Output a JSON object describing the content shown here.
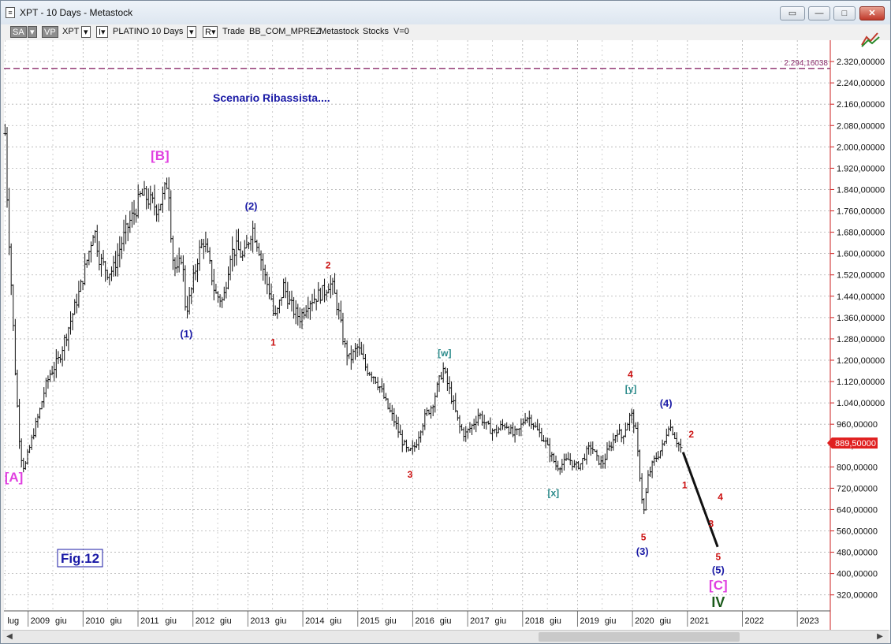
{
  "window": {
    "title": "XPT - 10 Days - Metastock",
    "icon_glyph": "≡",
    "controls": [
      {
        "name": "restore-icon",
        "glyph": "▭"
      },
      {
        "name": "minimize-icon",
        "glyph": "—"
      },
      {
        "name": "maximize-icon",
        "glyph": "□"
      },
      {
        "name": "close-icon",
        "glyph": "✕"
      }
    ]
  },
  "toolbar": {
    "items": [
      {
        "name": "sa-dropdown",
        "label": "SA",
        "style": "dark"
      },
      {
        "name": "sa-arrow",
        "label": "▾",
        "style": "dark"
      },
      {
        "name": "vp-button",
        "label": "VP",
        "style": "dark"
      },
      {
        "name": "symbol-label",
        "label": "XPT",
        "style": "text"
      },
      {
        "name": "symbol-dropdown",
        "label": "▾",
        "style": "box"
      },
      {
        "name": "symbol-menu",
        "label": "I▾",
        "style": "box"
      },
      {
        "name": "security-name",
        "label": "PLATINO",
        "style": "text"
      },
      {
        "name": "period-label",
        "label": "10 Days",
        "style": "text"
      },
      {
        "name": "period-dropdown",
        "label": "▾",
        "style": "box"
      },
      {
        "name": "r-menu",
        "label": "R▾",
        "style": "box"
      },
      {
        "name": "trade-label",
        "label": "Trade",
        "style": "text"
      },
      {
        "name": "broker-label",
        "label": "BB_COM_MPREZ",
        "style": "text"
      },
      {
        "name": "source-label",
        "label": "Metastock",
        "style": "text"
      },
      {
        "name": "type-label",
        "label": "Stocks",
        "style": "text"
      },
      {
        "name": "volume-label",
        "label": "V=0",
        "style": "text"
      }
    ]
  },
  "chart_data": {
    "type": "ohlc",
    "title": "Scenario Ribassista....",
    "figure_label": "Fig.12",
    "ylim": [
      260,
      2400
    ],
    "y_ticks": [
      2320,
      2240,
      2160,
      2080,
      2000,
      1920,
      1840,
      1760,
      1680,
      1600,
      1520,
      1440,
      1360,
      1280,
      1200,
      1120,
      1040,
      960,
      880,
      800,
      720,
      640,
      560,
      480,
      400,
      320
    ],
    "y_tick_labels": [
      "2.320,00000",
      "2.240,00000",
      "2.160,00000",
      "2.080,00000",
      "2.000,00000",
      "1.920,00000",
      "1.840,00000",
      "1.760,00000",
      "1.680,00000",
      "1.600,00000",
      "1.520,00000",
      "1.440,00000",
      "1.360,00000",
      "1.280,00000",
      "1.200,00000",
      "1.120,00000",
      "1.040,00000",
      "960,00000",
      "880,00000",
      "800,00000",
      "720,00000",
      "640,00000",
      "560,00000",
      "480,00000",
      "400,00000",
      "320,00000"
    ],
    "xlim": [
      2008.56,
      2023.6
    ],
    "x_labels": [
      {
        "t": 2008.58,
        "text": "lug"
      },
      {
        "t": 2009.0,
        "text": "2009"
      },
      {
        "t": 2009.45,
        "text": "giu"
      },
      {
        "t": 2010.0,
        "text": "2010"
      },
      {
        "t": 2010.45,
        "text": "giu"
      },
      {
        "t": 2011.0,
        "text": "2011"
      },
      {
        "t": 2011.45,
        "text": "giu"
      },
      {
        "t": 2012.0,
        "text": "2012"
      },
      {
        "t": 2012.45,
        "text": "giu"
      },
      {
        "t": 2013.0,
        "text": "2013"
      },
      {
        "t": 2013.45,
        "text": "giu"
      },
      {
        "t": 2014.0,
        "text": "2014"
      },
      {
        "t": 2014.45,
        "text": "giu"
      },
      {
        "t": 2015.0,
        "text": "2015"
      },
      {
        "t": 2015.45,
        "text": "giu"
      },
      {
        "t": 2016.0,
        "text": "2016"
      },
      {
        "t": 2016.45,
        "text": "giu"
      },
      {
        "t": 2017.0,
        "text": "2017"
      },
      {
        "t": 2017.45,
        "text": "giu"
      },
      {
        "t": 2018.0,
        "text": "2018"
      },
      {
        "t": 2018.45,
        "text": "giu"
      },
      {
        "t": 2019.0,
        "text": "2019"
      },
      {
        "t": 2019.45,
        "text": "giu"
      },
      {
        "t": 2020.0,
        "text": "2020"
      },
      {
        "t": 2020.45,
        "text": "giu"
      },
      {
        "t": 2021.0,
        "text": "2021"
      },
      {
        "t": 2022.0,
        "text": "2022"
      },
      {
        "t": 2023.0,
        "text": "2023"
      }
    ],
    "price_path": [
      [
        2008.58,
        2050
      ],
      [
        2008.62,
        1800
      ],
      [
        2008.7,
        1450
      ],
      [
        2008.78,
        1100
      ],
      [
        2008.86,
        850
      ],
      [
        2008.93,
        790
      ],
      [
        2009.0,
        850
      ],
      [
        2009.1,
        930
      ],
      [
        2009.2,
        1000
      ],
      [
        2009.3,
        1090
      ],
      [
        2009.4,
        1150
      ],
      [
        2009.55,
        1200
      ],
      [
        2009.7,
        1300
      ],
      [
        2009.85,
        1400
      ],
      [
        2009.95,
        1470
      ],
      [
        2010.1,
        1600
      ],
      [
        2010.2,
        1700
      ],
      [
        2010.3,
        1580
      ],
      [
        2010.45,
        1530
      ],
      [
        2010.55,
        1540
      ],
      [
        2010.7,
        1640
      ],
      [
        2010.85,
        1720
      ],
      [
        2010.95,
        1760
      ],
      [
        2011.05,
        1820
      ],
      [
        2011.15,
        1810
      ],
      [
        2011.25,
        1790
      ],
      [
        2011.35,
        1770
      ],
      [
        2011.45,
        1810
      ],
      [
        2011.55,
        1880
      ],
      [
        2011.62,
        1600
      ],
      [
        2011.7,
        1520
      ],
      [
        2011.8,
        1600
      ],
      [
        2011.87,
        1380
      ],
      [
        2011.95,
        1440
      ],
      [
        2012.1,
        1600
      ],
      [
        2012.2,
        1650
      ],
      [
        2012.3,
        1560
      ],
      [
        2012.4,
        1450
      ],
      [
        2012.55,
        1420
      ],
      [
        2012.68,
        1600
      ],
      [
        2012.8,
        1620
      ],
      [
        2012.92,
        1580
      ],
      [
        2013.08,
        1700
      ],
      [
        2013.2,
        1620
      ],
      [
        2013.3,
        1520
      ],
      [
        2013.42,
        1440
      ],
      [
        2013.48,
        1350
      ],
      [
        2013.55,
        1390
      ],
      [
        2013.65,
        1480
      ],
      [
        2013.75,
        1420
      ],
      [
        2013.85,
        1380
      ],
      [
        2013.95,
        1360
      ],
      [
        2014.1,
        1420
      ],
      [
        2014.25,
        1440
      ],
      [
        2014.4,
        1460
      ],
      [
        2014.48,
        1490
      ],
      [
        2014.55,
        1470
      ],
      [
        2014.65,
        1380
      ],
      [
        2014.75,
        1260
      ],
      [
        2014.85,
        1200
      ],
      [
        2015.0,
        1250
      ],
      [
        2015.15,
        1170
      ],
      [
        2015.3,
        1140
      ],
      [
        2015.4,
        1100
      ],
      [
        2015.55,
        1020
      ],
      [
        2015.65,
        980
      ],
      [
        2015.8,
        900
      ],
      [
        2015.92,
        850
      ],
      [
        2016.05,
        880
      ],
      [
        2016.15,
        950
      ],
      [
        2016.25,
        1000
      ],
      [
        2016.35,
        1030
      ],
      [
        2016.45,
        1100
      ],
      [
        2016.55,
        1170
      ],
      [
        2016.62,
        1120
      ],
      [
        2016.72,
        1050
      ],
      [
        2016.85,
        950
      ],
      [
        2016.95,
        920
      ],
      [
        2017.1,
        960
      ],
      [
        2017.2,
        1000
      ],
      [
        2017.35,
        950
      ],
      [
        2017.5,
        930
      ],
      [
        2017.6,
        950
      ],
      [
        2017.7,
        960
      ],
      [
        2017.82,
        920
      ],
      [
        2017.92,
        930
      ],
      [
        2018.05,
        990
      ],
      [
        2018.15,
        980
      ],
      [
        2018.25,
        940
      ],
      [
        2018.4,
        900
      ],
      [
        2018.5,
        850
      ],
      [
        2018.62,
        800
      ],
      [
        2018.72,
        810
      ],
      [
        2018.85,
        830
      ],
      [
        2018.95,
        800
      ],
      [
        2019.05,
        810
      ],
      [
        2019.15,
        850
      ],
      [
        2019.25,
        880
      ],
      [
        2019.35,
        830
      ],
      [
        2019.45,
        810
      ],
      [
        2019.55,
        860
      ],
      [
        2019.65,
        900
      ],
      [
        2019.72,
        940
      ],
      [
        2019.8,
        910
      ],
      [
        2019.9,
        960
      ],
      [
        2019.97,
        1000
      ],
      [
        2020.05,
        950
      ],
      [
        2020.12,
        800
      ],
      [
        2020.2,
        620
      ],
      [
        2020.28,
        760
      ],
      [
        2020.38,
        820
      ],
      [
        2020.48,
        850
      ],
      [
        2020.58,
        890
      ],
      [
        2020.65,
        960
      ],
      [
        2020.72,
        940
      ],
      [
        2020.8,
        900
      ],
      [
        2020.88,
        870
      ]
    ],
    "projection": [
      [
        2020.92,
        855
      ],
      [
        2021.55,
        500
      ]
    ],
    "last_price": {
      "value": 889.5,
      "label": "889,50000"
    },
    "reference_line": {
      "value": 2294.16038,
      "label": "2.294,16038"
    },
    "wave_labels": [
      {
        "text": "[A]",
        "t": 2008.74,
        "v": 745,
        "color": "#e040e0",
        "size": 17
      },
      {
        "text": "[B]",
        "t": 2011.4,
        "v": 1950,
        "color": "#e040e0",
        "size": 17
      },
      {
        "text": "(1)",
        "t": 2011.88,
        "v": 1285,
        "color": "#1a1aa6",
        "size": 13
      },
      {
        "text": "(2)",
        "t": 2013.06,
        "v": 1765,
        "color": "#1a1aa6",
        "size": 13
      },
      {
        "text": "1",
        "t": 2013.46,
        "v": 1255,
        "color": "#cc1111",
        "size": 12
      },
      {
        "text": "2",
        "t": 2014.46,
        "v": 1545,
        "color": "#cc1111",
        "size": 12
      },
      {
        "text": "3",
        "t": 2015.95,
        "v": 760,
        "color": "#cc1111",
        "size": 12
      },
      {
        "text": "[w]",
        "t": 2016.58,
        "v": 1215,
        "color": "#2a8a8a",
        "size": 12
      },
      {
        "text": "[x]",
        "t": 2018.56,
        "v": 690,
        "color": "#2a8a8a",
        "size": 12
      },
      {
        "text": "4",
        "t": 2019.96,
        "v": 1135,
        "color": "#cc1111",
        "size": 12
      },
      {
        "text": "[y]",
        "t": 2019.97,
        "v": 1080,
        "color": "#2a8a8a",
        "size": 12
      },
      {
        "text": "(4)",
        "t": 2020.61,
        "v": 1025,
        "color": "#1a1aa6",
        "size": 13
      },
      {
        "text": "5",
        "t": 2020.2,
        "v": 525,
        "color": "#cc1111",
        "size": 12
      },
      {
        "text": "(3)",
        "t": 2020.18,
        "v": 470,
        "color": "#1a1aa6",
        "size": 13
      },
      {
        "text": "2",
        "t": 2021.07,
        "v": 910,
        "color": "#cc1111",
        "size": 12
      },
      {
        "text": "1",
        "t": 2020.95,
        "v": 720,
        "color": "#cc1111",
        "size": 12
      },
      {
        "text": "4",
        "t": 2021.6,
        "v": 675,
        "color": "#cc1111",
        "size": 12
      },
      {
        "text": "3",
        "t": 2021.43,
        "v": 575,
        "color": "#cc1111",
        "size": 12
      },
      {
        "text": "5",
        "t": 2021.56,
        "v": 450,
        "color": "#cc1111",
        "size": 12
      },
      {
        "text": "(5)",
        "t": 2021.56,
        "v": 400,
        "color": "#1a1aa6",
        "size": 13
      },
      {
        "text": "[C]",
        "t": 2021.56,
        "v": 340,
        "color": "#e040e0",
        "size": 17
      },
      {
        "text": "IV",
        "t": 2021.56,
        "v": 275,
        "color": "#1a5a1a",
        "size": 18
      }
    ],
    "colors": {
      "price": "#111111",
      "projection": "#111111",
      "grid": "#b0b0b0",
      "reference_line": "#8a2a6a",
      "last_price_bg": "#e02020",
      "axis_line": "#cc2222",
      "title": "#1a1aa6"
    }
  }
}
